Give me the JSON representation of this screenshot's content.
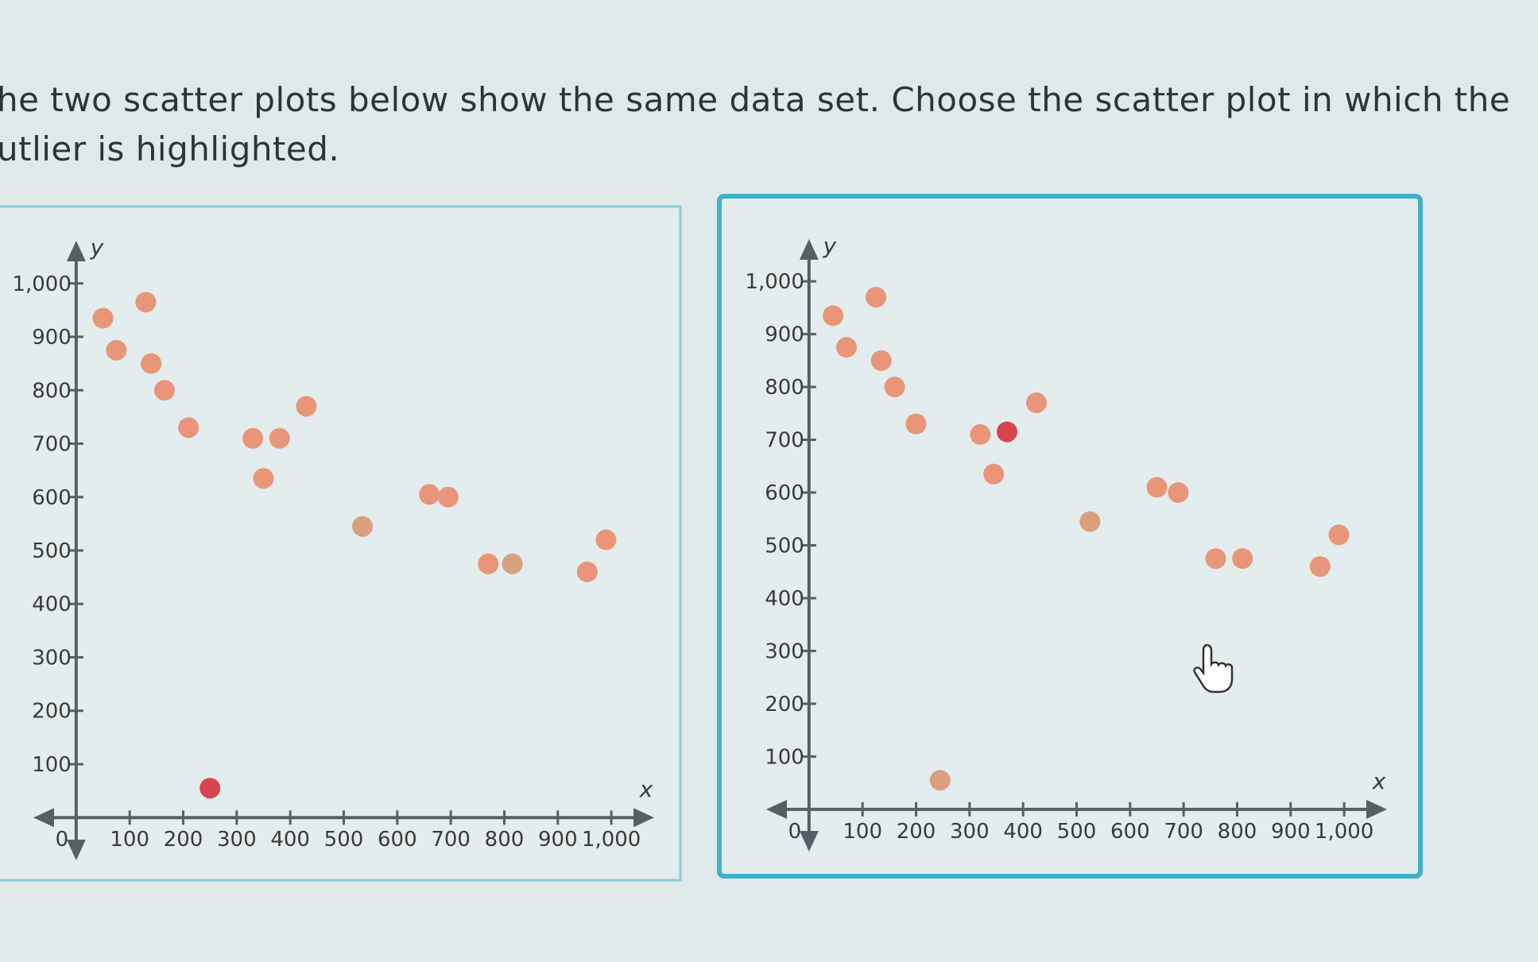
{
  "question": [
    "he two scatter plots below show the same data set. Choose the scatter plot in which the",
    "utlier is highlighted."
  ],
  "chart_data": [
    {
      "type": "scatter",
      "x_label": "x",
      "y_label": "y",
      "x": [
        50,
        130,
        75,
        140,
        165,
        210,
        330,
        380,
        430,
        350,
        535,
        660,
        695,
        770,
        815,
        955,
        990,
        250
      ],
      "values": [
        935,
        965,
        875,
        850,
        800,
        730,
        710,
        710,
        770,
        635,
        545,
        605,
        600,
        475,
        475,
        460,
        520,
        55
      ],
      "colors": [
        "#e8957a",
        "#e8957a",
        "#e8957a",
        "#e8957a",
        "#e8957a",
        "#e8957a",
        "#e8957a",
        "#e8957a",
        "#e8957a",
        "#e8957a",
        "#d9a07e",
        "#e8957a",
        "#e8957a",
        "#e8957a",
        "#d9a07e",
        "#e8957a",
        "#e8957a",
        "#d9434e"
      ],
      "xlim": [
        -80,
        1080
      ],
      "ylim": [
        -80,
        1080
      ],
      "xticks": [
        0,
        100,
        200,
        300,
        400,
        500,
        600,
        700,
        800,
        900,
        {
          "value": 1000,
          "label": "1,000"
        }
      ],
      "yticks": [
        100,
        200,
        300,
        400,
        500,
        600,
        700,
        800,
        900,
        {
          "value": 1000,
          "label": "1,000"
        }
      ]
    },
    {
      "type": "scatter",
      "x_label": "x",
      "y_label": "y",
      "x": [
        45,
        125,
        70,
        135,
        160,
        200,
        320,
        370,
        425,
        345,
        525,
        650,
        690,
        760,
        810,
        955,
        990,
        245
      ],
      "values": [
        935,
        970,
        875,
        850,
        800,
        730,
        710,
        715,
        770,
        635,
        545,
        610,
        600,
        475,
        475,
        460,
        520,
        55
      ],
      "colors": [
        "#e8957a",
        "#e8957a",
        "#e8957a",
        "#e8957a",
        "#e8957a",
        "#e8957a",
        "#e8957a",
        "#d9434e",
        "#e8957a",
        "#e8957a",
        "#d9a07e",
        "#e8957a",
        "#e8957a",
        "#e8957a",
        "#e8957a",
        "#e8957a",
        "#e8957a",
        "#d9a07e"
      ],
      "xlim": [
        -80,
        1080
      ],
      "ylim": [
        -80,
        1080
      ],
      "xticks": [
        0,
        100,
        200,
        300,
        400,
        500,
        600,
        700,
        800,
        900,
        {
          "value": 1000,
          "label": "1,000"
        }
      ],
      "yticks": [
        100,
        200,
        300,
        400,
        500,
        600,
        700,
        800,
        900,
        {
          "value": 1000,
          "label": "1,000"
        }
      ]
    }
  ]
}
